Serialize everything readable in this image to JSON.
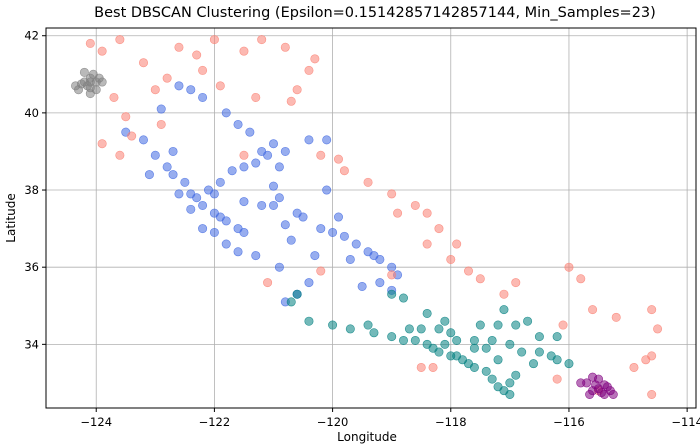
{
  "chart_data": {
    "type": "scatter",
    "title": "Best DBSCAN Clustering (Epsilon=0.15142857142857144, Min_Samples=23)",
    "xlabel": "Longitude",
    "ylabel": "Latitude",
    "xlim": [
      -124.85,
      -113.85
    ],
    "ylim": [
      32.35,
      42.2
    ],
    "xticks": [
      -124,
      -122,
      -120,
      -118,
      -116,
      -114
    ],
    "yticks": [
      34,
      36,
      38,
      40,
      42
    ],
    "xtick_labels": [
      "−124",
      "−122",
      "−120",
      "−118",
      "−116",
      "−114"
    ],
    "ytick_labels": [
      "34",
      "36",
      "38",
      "40",
      "42"
    ],
    "grid": true,
    "legend": "none",
    "marker_alpha": 0.55,
    "series": [
      {
        "color": "#4169e1",
        "points": [
          [
            -123.5,
            39.5
          ],
          [
            -123.2,
            39.3
          ],
          [
            -123.0,
            38.9
          ],
          [
            -122.8,
            38.6
          ],
          [
            -122.7,
            38.4
          ],
          [
            -122.5,
            38.2
          ],
          [
            -122.4,
            37.9
          ],
          [
            -122.3,
            37.8
          ],
          [
            -122.2,
            37.6
          ],
          [
            -122.0,
            37.4
          ],
          [
            -121.9,
            37.3
          ],
          [
            -121.8,
            37.2
          ],
          [
            -121.6,
            37.0
          ],
          [
            -121.5,
            36.9
          ],
          [
            -121.8,
            36.6
          ],
          [
            -121.6,
            36.4
          ],
          [
            -122.0,
            36.9
          ],
          [
            -122.2,
            37.0
          ],
          [
            -122.4,
            37.5
          ],
          [
            -122.6,
            37.9
          ],
          [
            -122.1,
            38.0
          ],
          [
            -121.9,
            38.2
          ],
          [
            -121.7,
            38.5
          ],
          [
            -121.5,
            38.6
          ],
          [
            -121.3,
            38.7
          ],
          [
            -121.2,
            39.0
          ],
          [
            -121.0,
            39.2
          ],
          [
            -121.6,
            39.7
          ],
          [
            -121.8,
            40.0
          ],
          [
            -122.2,
            40.4
          ],
          [
            -122.4,
            40.6
          ],
          [
            -122.6,
            40.7
          ],
          [
            -121.4,
            39.5
          ],
          [
            -121.1,
            38.9
          ],
          [
            -120.9,
            38.6
          ],
          [
            -121.0,
            38.1
          ],
          [
            -120.9,
            37.8
          ],
          [
            -120.6,
            37.4
          ],
          [
            -120.5,
            37.3
          ],
          [
            -120.2,
            37.0
          ],
          [
            -120.0,
            36.9
          ],
          [
            -119.8,
            36.8
          ],
          [
            -119.6,
            36.6
          ],
          [
            -119.4,
            36.4
          ],
          [
            -119.3,
            36.3
          ],
          [
            -119.2,
            36.2
          ],
          [
            -119.0,
            36.0
          ],
          [
            -118.9,
            35.8
          ],
          [
            -119.2,
            35.6
          ],
          [
            -119.0,
            35.4
          ],
          [
            -120.4,
            35.6
          ],
          [
            -120.6,
            35.3
          ],
          [
            -120.8,
            35.1
          ],
          [
            -119.7,
            36.2
          ],
          [
            -120.3,
            36.3
          ],
          [
            -119.9,
            37.3
          ],
          [
            -120.1,
            38.0
          ],
          [
            -120.8,
            39.0
          ],
          [
            -120.4,
            39.3
          ],
          [
            -120.1,
            39.3
          ],
          [
            -122.9,
            40.1
          ],
          [
            -122.7,
            39.0
          ],
          [
            -123.1,
            38.4
          ],
          [
            -122.0,
            37.9
          ],
          [
            -121.5,
            37.7
          ],
          [
            -121.2,
            37.6
          ],
          [
            -121.0,
            37.6
          ],
          [
            -120.8,
            37.1
          ],
          [
            -120.7,
            36.7
          ],
          [
            -121.3,
            36.3
          ],
          [
            -120.9,
            36.0
          ],
          [
            -119.5,
            35.5
          ]
        ]
      },
      {
        "color": "#008080",
        "points": [
          [
            -120.4,
            34.6
          ],
          [
            -120.0,
            34.5
          ],
          [
            -119.7,
            34.4
          ],
          [
            -119.3,
            34.3
          ],
          [
            -119.0,
            34.2
          ],
          [
            -118.8,
            34.1
          ],
          [
            -118.6,
            34.1
          ],
          [
            -118.4,
            34.0
          ],
          [
            -118.3,
            33.9
          ],
          [
            -118.2,
            33.8
          ],
          [
            -118.1,
            34.0
          ],
          [
            -118.0,
            33.7
          ],
          [
            -117.9,
            33.7
          ],
          [
            -117.8,
            33.6
          ],
          [
            -117.7,
            33.5
          ],
          [
            -117.6,
            33.4
          ],
          [
            -117.4,
            33.3
          ],
          [
            -117.3,
            33.1
          ],
          [
            -117.2,
            32.9
          ],
          [
            -117.1,
            32.8
          ],
          [
            -117.0,
            32.7
          ],
          [
            -117.0,
            33.0
          ],
          [
            -116.9,
            33.2
          ],
          [
            -117.2,
            33.6
          ],
          [
            -117.4,
            33.9
          ],
          [
            -117.3,
            34.1
          ],
          [
            -117.6,
            34.1
          ],
          [
            -117.9,
            34.1
          ],
          [
            -118.2,
            34.4
          ],
          [
            -118.5,
            34.4
          ],
          [
            -117.0,
            34.0
          ],
          [
            -116.8,
            33.8
          ],
          [
            -116.5,
            33.8
          ],
          [
            -116.3,
            33.7
          ],
          [
            -116.2,
            33.6
          ],
          [
            -116.0,
            33.5
          ],
          [
            -116.5,
            34.2
          ],
          [
            -116.9,
            34.5
          ],
          [
            -117.2,
            34.5
          ],
          [
            -118.1,
            34.6
          ],
          [
            -118.4,
            34.8
          ],
          [
            -118.8,
            35.2
          ],
          [
            -119.0,
            35.3
          ],
          [
            -120.6,
            35.3
          ],
          [
            -120.7,
            35.1
          ],
          [
            -117.1,
            34.9
          ],
          [
            -116.7,
            34.6
          ],
          [
            -116.2,
            34.2
          ],
          [
            -117.6,
            33.9
          ],
          [
            -118.0,
            34.3
          ],
          [
            -116.6,
            33.5
          ],
          [
            -117.5,
            34.5
          ],
          [
            -119.4,
            34.5
          ],
          [
            -118.7,
            34.4
          ]
        ]
      },
      {
        "color": "#fa8072",
        "points": [
          [
            -124.1,
            41.8
          ],
          [
            -123.9,
            41.6
          ],
          [
            -123.6,
            41.9
          ],
          [
            -123.2,
            41.3
          ],
          [
            -122.6,
            41.7
          ],
          [
            -122.3,
            41.5
          ],
          [
            -122.0,
            41.9
          ],
          [
            -121.5,
            41.6
          ],
          [
            -120.8,
            41.7
          ],
          [
            -120.4,
            41.1
          ],
          [
            -122.8,
            40.9
          ],
          [
            -121.9,
            40.7
          ],
          [
            -121.3,
            40.4
          ],
          [
            -120.7,
            40.3
          ],
          [
            -120.6,
            40.6
          ],
          [
            -123.7,
            40.4
          ],
          [
            -123.9,
            39.2
          ],
          [
            -123.5,
            39.9
          ],
          [
            -120.2,
            38.9
          ],
          [
            -119.8,
            38.5
          ],
          [
            -119.4,
            38.2
          ],
          [
            -119.0,
            37.9
          ],
          [
            -118.6,
            37.6
          ],
          [
            -118.4,
            37.4
          ],
          [
            -118.2,
            37.0
          ],
          [
            -117.9,
            36.6
          ],
          [
            -118.0,
            36.2
          ],
          [
            -117.7,
            35.9
          ],
          [
            -117.5,
            35.7
          ],
          [
            -116.9,
            35.6
          ],
          [
            -116.0,
            36.0
          ],
          [
            -115.8,
            35.7
          ],
          [
            -115.6,
            34.9
          ],
          [
            -115.2,
            34.7
          ],
          [
            -114.6,
            34.9
          ],
          [
            -114.5,
            34.4
          ],
          [
            -114.6,
            33.7
          ],
          [
            -114.7,
            33.6
          ],
          [
            -114.9,
            33.4
          ],
          [
            -114.6,
            32.7
          ],
          [
            -115.5,
            32.8
          ],
          [
            -116.2,
            33.1
          ],
          [
            -118.5,
            33.4
          ],
          [
            -118.3,
            33.4
          ],
          [
            -119.0,
            35.8
          ],
          [
            -120.2,
            35.9
          ],
          [
            -121.1,
            35.6
          ],
          [
            -123.6,
            38.9
          ],
          [
            -123.4,
            39.4
          ],
          [
            -123.0,
            40.6
          ],
          [
            -122.2,
            41.1
          ],
          [
            -121.2,
            41.9
          ],
          [
            -120.3,
            41.4
          ],
          [
            -119.9,
            38.8
          ],
          [
            -118.9,
            37.4
          ],
          [
            -118.4,
            36.6
          ],
          [
            -117.1,
            35.3
          ],
          [
            -116.1,
            34.5
          ],
          [
            -122.9,
            39.7
          ],
          [
            -121.5,
            38.9
          ]
        ]
      },
      {
        "color": "#808080",
        "points": [
          [
            -124.2,
            40.8
          ],
          [
            -124.1,
            40.9
          ],
          [
            -124.0,
            40.8
          ],
          [
            -124.15,
            40.7
          ],
          [
            -124.3,
            40.6
          ],
          [
            -124.1,
            40.5
          ],
          [
            -124.05,
            41.0
          ],
          [
            -123.95,
            40.9
          ],
          [
            -124.25,
            40.75
          ],
          [
            -124.1,
            40.65
          ],
          [
            -124.0,
            40.6
          ],
          [
            -124.35,
            40.7
          ],
          [
            -123.9,
            40.8
          ],
          [
            -124.2,
            41.05
          ],
          [
            -124.1,
            40.8
          ]
        ]
      },
      {
        "color": "#800080",
        "points": [
          [
            -115.6,
            32.8
          ],
          [
            -115.5,
            32.85
          ],
          [
            -115.4,
            32.7
          ],
          [
            -115.55,
            32.95
          ],
          [
            -115.35,
            32.9
          ],
          [
            -115.7,
            33.0
          ],
          [
            -115.45,
            32.75
          ],
          [
            -115.3,
            32.8
          ],
          [
            -115.6,
            33.15
          ],
          [
            -115.8,
            33.0
          ],
          [
            -115.25,
            32.7
          ],
          [
            -115.5,
            33.1
          ],
          [
            -115.4,
            32.95
          ],
          [
            -115.65,
            32.7
          ]
        ]
      }
    ]
  }
}
